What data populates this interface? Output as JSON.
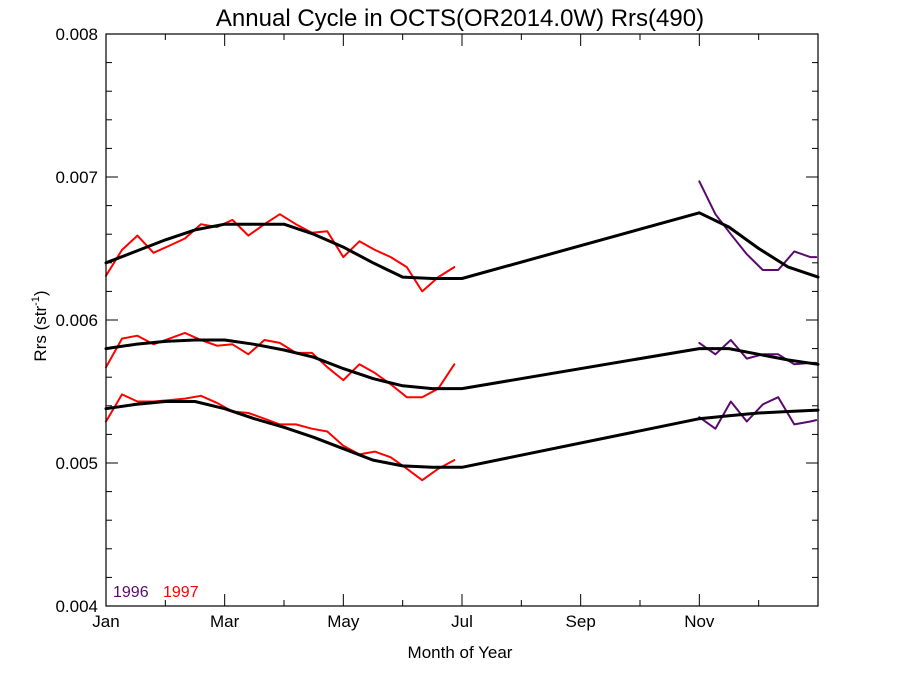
{
  "chart_data": {
    "type": "line",
    "title": "Annual Cycle in OCTS(OR2014.0W) Rrs(490)",
    "xlabel": "Month of Year",
    "ylabel_main": "Rrs (str",
    "ylabel_sup": "-1",
    "ylabel_close": ")",
    "xlim": [
      0,
      12
    ],
    "ylim": [
      0.004,
      0.008
    ],
    "x_ticks": [
      {
        "value": 0,
        "label": "Jan"
      },
      {
        "value": 2,
        "label": "Mar"
      },
      {
        "value": 4,
        "label": "May"
      },
      {
        "value": 6,
        "label": "Jul"
      },
      {
        "value": 8,
        "label": "Sep"
      },
      {
        "value": 10,
        "label": "Nov"
      }
    ],
    "y_ticks": [
      {
        "value": 0.004,
        "label": "0.004"
      },
      {
        "value": 0.005,
        "label": "0.005"
      },
      {
        "value": 0.006,
        "label": "0.006"
      },
      {
        "value": 0.007,
        "label": "0.007"
      },
      {
        "value": 0.008,
        "label": "0.008"
      }
    ],
    "minor_x_ticks": [
      1,
      3,
      5,
      7,
      9,
      11
    ],
    "minor_y_ticks": [
      0.0042,
      0.0044,
      0.0046,
      0.0048,
      0.0052,
      0.0054,
      0.0056,
      0.0058,
      0.0062,
      0.0064,
      0.0066,
      0.0068,
      0.0072,
      0.0074,
      0.0076,
      0.0078
    ],
    "legend": [
      {
        "label": "1996",
        "color": "#5a0a6e"
      },
      {
        "label": "1997",
        "color": "#ff0000"
      }
    ],
    "series": [
      {
        "year": "1997",
        "color": "#ff0000",
        "x": [
          0,
          0.27,
          0.53,
          0.8,
          1.07,
          1.33,
          1.6,
          1.87,
          2.13,
          2.4,
          2.67,
          2.93,
          3.2,
          3.47,
          3.73,
          4.0,
          4.27,
          4.53,
          4.8,
          5.07,
          5.33,
          5.6,
          5.87
        ],
        "y": [
          0.00631,
          0.00649,
          0.00659,
          0.00647,
          0.00652,
          0.00657,
          0.00667,
          0.00665,
          0.0067,
          0.00659,
          0.00667,
          0.00674,
          0.00667,
          0.00661,
          0.00662,
          0.00644,
          0.00655,
          0.00649,
          0.00644,
          0.00637,
          0.0062,
          0.0063,
          0.00637
        ]
      },
      {
        "year": "1997",
        "color": "#ff0000",
        "x": [
          0,
          0.27,
          0.53,
          0.8,
          1.07,
          1.33,
          1.6,
          1.87,
          2.13,
          2.4,
          2.67,
          2.93,
          3.2,
          3.47,
          3.73,
          4.0,
          4.27,
          4.53,
          4.8,
          5.07,
          5.33,
          5.6,
          5.87
        ],
        "y": [
          0.00567,
          0.00587,
          0.00589,
          0.00583,
          0.00587,
          0.00591,
          0.00586,
          0.00582,
          0.00583,
          0.00576,
          0.00586,
          0.00584,
          0.00577,
          0.00577,
          0.00567,
          0.00558,
          0.00569,
          0.00563,
          0.00555,
          0.00546,
          0.00546,
          0.00552,
          0.00569
        ]
      },
      {
        "year": "1997",
        "color": "#ff0000",
        "x": [
          0,
          0.27,
          0.53,
          0.8,
          1.07,
          1.33,
          1.6,
          1.87,
          2.13,
          2.4,
          2.67,
          2.93,
          3.2,
          3.47,
          3.73,
          4.0,
          4.27,
          4.53,
          4.8,
          5.07,
          5.33,
          5.6,
          5.87
        ],
        "y": [
          0.00529,
          0.00548,
          0.00543,
          0.00543,
          0.00544,
          0.00545,
          0.00547,
          0.00542,
          0.00536,
          0.00535,
          0.00531,
          0.00527,
          0.00527,
          0.00524,
          0.00522,
          0.00512,
          0.00506,
          0.00508,
          0.00504,
          0.00496,
          0.00488,
          0.00496,
          0.00502
        ]
      },
      {
        "year": "1996",
        "color": "#5a0a6e",
        "x": [
          10.0,
          10.27,
          10.53,
          10.8,
          11.07,
          11.33,
          11.6,
          11.87,
          11.97
        ],
        "y": [
          0.00697,
          0.00674,
          0.0066,
          0.00646,
          0.00635,
          0.00635,
          0.00648,
          0.00644,
          0.00644
        ]
      },
      {
        "year": "1996",
        "color": "#5a0a6e",
        "x": [
          10.0,
          10.27,
          10.53,
          10.8,
          11.07,
          11.33,
          11.6,
          11.87,
          11.97
        ],
        "y": [
          0.00584,
          0.00576,
          0.00586,
          0.00573,
          0.00576,
          0.00576,
          0.00569,
          0.0057,
          0.0057
        ]
      },
      {
        "year": "1996",
        "color": "#5a0a6e",
        "x": [
          10.0,
          10.27,
          10.53,
          10.8,
          11.07,
          11.33,
          11.6,
          11.87,
          11.97
        ],
        "y": [
          0.00532,
          0.00524,
          0.00543,
          0.00529,
          0.00541,
          0.00546,
          0.00527,
          0.00529,
          0.0053
        ]
      },
      {
        "year": "fit",
        "color": "#000000",
        "x": [
          0,
          0.5,
          1.0,
          1.5,
          2.0,
          2.5,
          3.0,
          3.5,
          4.0,
          4.5,
          5.0,
          5.5,
          6.0,
          10.0,
          10.5,
          11.0,
          11.5,
          12.0
        ],
        "y": [
          0.0064,
          0.00648,
          0.00656,
          0.00663,
          0.00667,
          0.00667,
          0.00667,
          0.0066,
          0.00651,
          0.0064,
          0.0063,
          0.00629,
          0.00629,
          0.00675,
          0.00665,
          0.0065,
          0.00637,
          0.0063
        ]
      },
      {
        "year": "fit",
        "color": "#000000",
        "x": [
          0,
          0.5,
          1.0,
          1.5,
          2.0,
          2.5,
          3.0,
          3.5,
          4.0,
          4.5,
          5.0,
          5.5,
          6.0,
          10.0,
          10.5,
          11.0,
          11.5,
          12.0
        ],
        "y": [
          0.0058,
          0.00583,
          0.00585,
          0.00586,
          0.00586,
          0.00583,
          0.00579,
          0.00574,
          0.00566,
          0.00559,
          0.00554,
          0.00552,
          0.00552,
          0.0058,
          0.0058,
          0.00576,
          0.00572,
          0.00569
        ]
      },
      {
        "year": "fit",
        "color": "#000000",
        "x": [
          0,
          0.5,
          1.0,
          1.5,
          2.0,
          2.5,
          3.0,
          3.5,
          4.0,
          4.5,
          5.0,
          5.5,
          6.0,
          10.0,
          10.5,
          11.0,
          11.5,
          12.0
        ],
        "y": [
          0.00538,
          0.00541,
          0.00543,
          0.00543,
          0.00538,
          0.00531,
          0.00525,
          0.00518,
          0.0051,
          0.00502,
          0.00498,
          0.00497,
          0.00497,
          0.00531,
          0.00533,
          0.00535,
          0.00536,
          0.00537
        ]
      }
    ]
  }
}
